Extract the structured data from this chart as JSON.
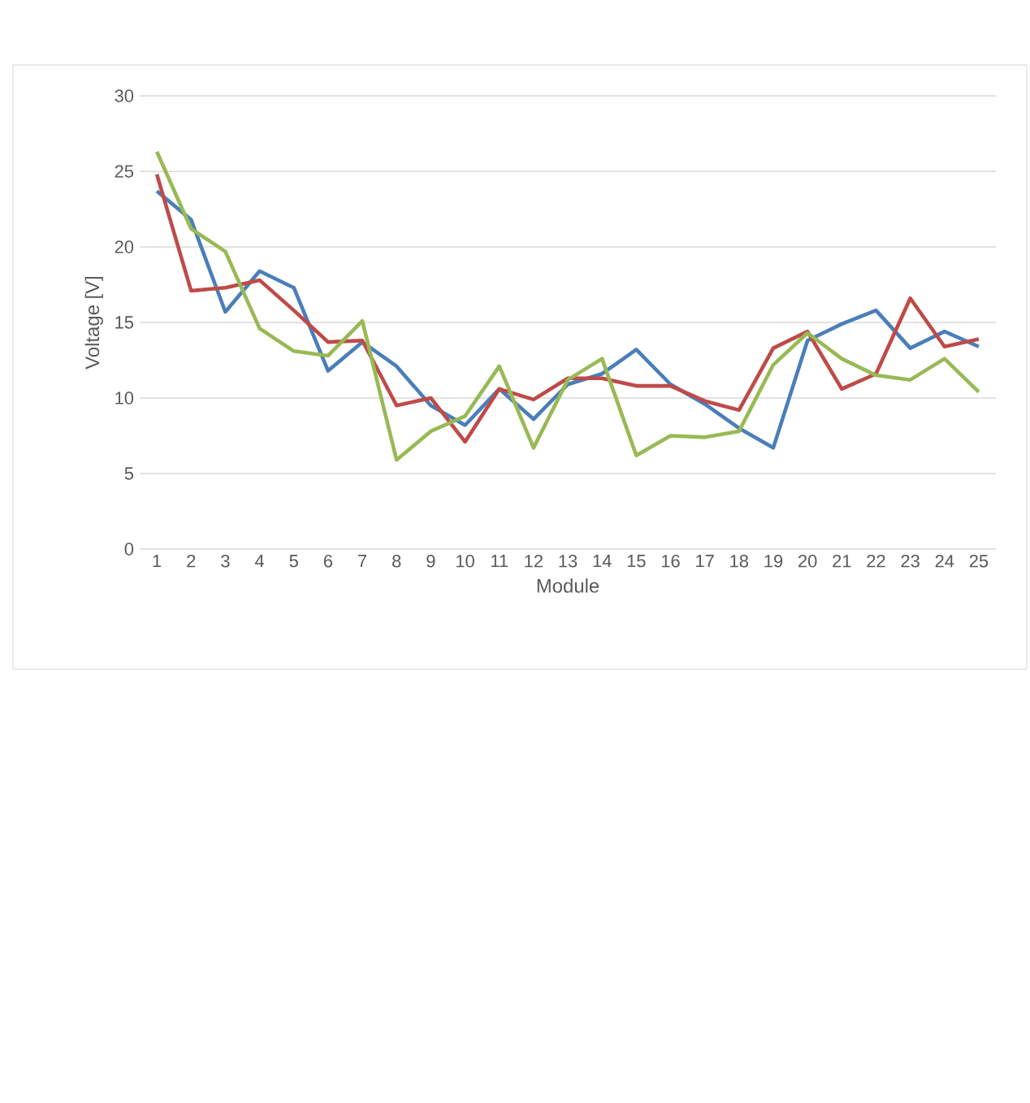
{
  "chart_data": {
    "type": "line",
    "xlabel": "Module",
    "ylabel": "Voltage [V]",
    "categories": [
      "1",
      "2",
      "3",
      "4",
      "5",
      "6",
      "7",
      "8",
      "9",
      "10",
      "11",
      "12",
      "13",
      "14",
      "15",
      "16",
      "17",
      "18",
      "19",
      "20",
      "21",
      "22",
      "23",
      "24",
      "25"
    ],
    "series": [
      {
        "color": "#4a7ebb",
        "values": [
          23.7,
          21.8,
          15.7,
          18.4,
          17.3,
          11.8,
          13.7,
          12.1,
          9.5,
          8.2,
          10.6,
          8.6,
          10.9,
          11.6,
          13.2,
          10.9,
          9.6,
          8.0,
          6.7,
          13.8,
          14.9,
          15.8,
          13.3,
          14.4,
          13.4
        ]
      },
      {
        "color": "#be4b48",
        "values": [
          24.8,
          17.1,
          17.3,
          17.8,
          15.8,
          13.7,
          13.8,
          9.5,
          10.0,
          7.1,
          10.6,
          9.9,
          11.3,
          11.3,
          10.8,
          10.8,
          9.8,
          9.2,
          13.3,
          14.4,
          10.6,
          11.6,
          16.6,
          13.4,
          13.9
        ]
      },
      {
        "color": "#98b954",
        "values": [
          26.3,
          21.2,
          19.7,
          14.6,
          13.1,
          12.8,
          15.1,
          5.9,
          7.8,
          8.8,
          12.1,
          6.7,
          11.2,
          12.6,
          6.2,
          7.5,
          7.4,
          7.8,
          12.2,
          14.3,
          12.6,
          11.5,
          11.2,
          12.6,
          10.4
        ]
      }
    ],
    "ylim": [
      0,
      30
    ],
    "yticks": [
      0,
      5,
      10,
      15,
      20,
      25,
      30
    ],
    "grid": "y",
    "marker": "none",
    "line_style": "solid"
  }
}
